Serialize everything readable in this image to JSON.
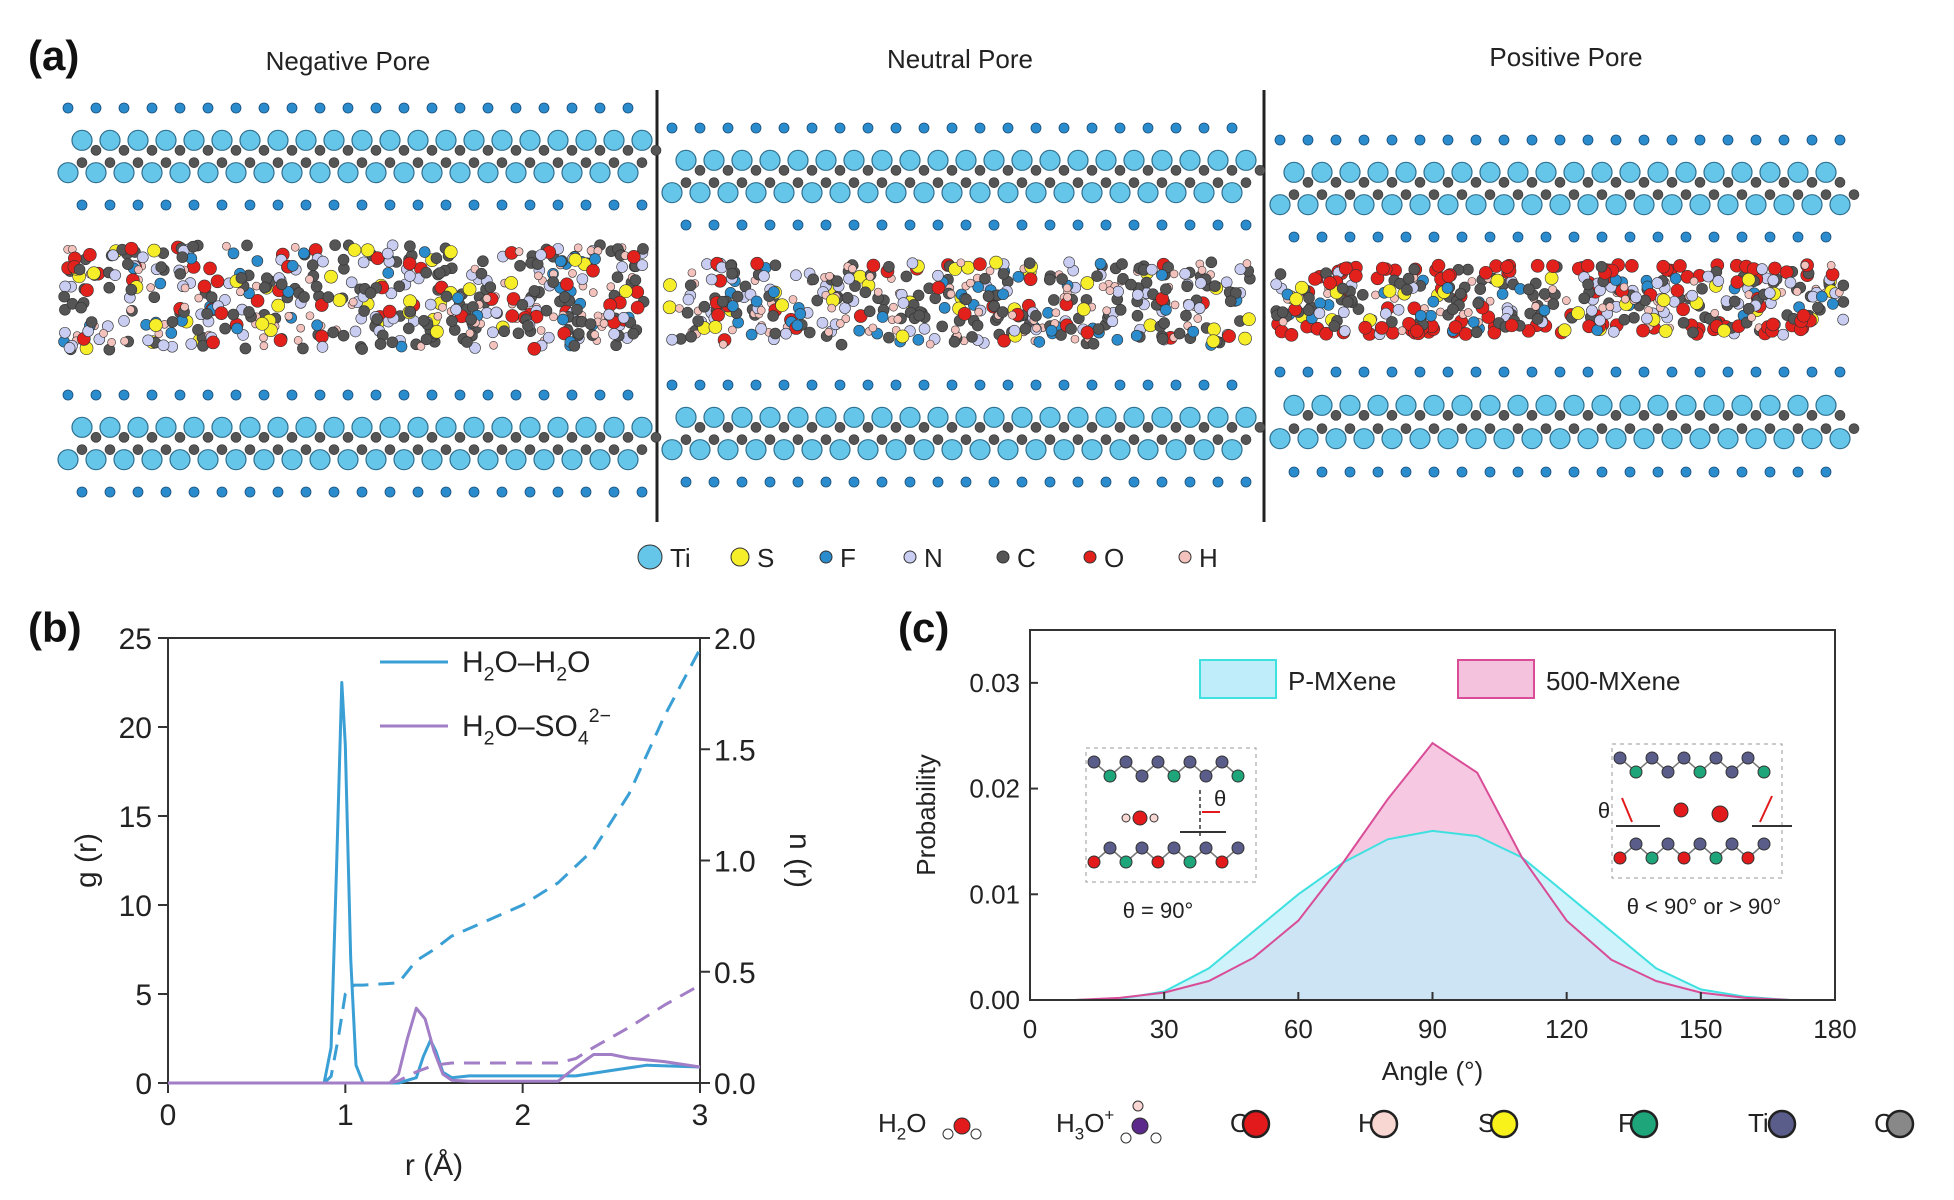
{
  "panel_a": {
    "label": "(a)",
    "pores": [
      {
        "title": "Negative Pore"
      },
      {
        "title": "Neutral Pore"
      },
      {
        "title": "Positive Pore"
      }
    ],
    "legend": [
      {
        "symbol": "Ti",
        "color": "#66c6ea"
      },
      {
        "symbol": "S",
        "color": "#f7ee2a"
      },
      {
        "symbol": "F",
        "color": "#2a8ccc"
      },
      {
        "symbol": "N",
        "color": "#c9cdf1"
      },
      {
        "symbol": "C",
        "color": "#555555"
      },
      {
        "symbol": "O",
        "color": "#e3211c"
      },
      {
        "symbol": "H",
        "color": "#f3c2bd"
      }
    ]
  },
  "chart_data": [
    {
      "type": "line",
      "panel": "(b)",
      "xlabel": "r (Å)",
      "ylabel": "g (r)",
      "y2label": "n (r)",
      "xlim": [
        0,
        3
      ],
      "ylim": [
        0,
        25
      ],
      "y2lim": [
        0,
        2.0
      ],
      "xticks": [
        "0",
        "1",
        "2",
        "3"
      ],
      "yticks": [
        "0",
        "5",
        "10",
        "15",
        "20",
        "25"
      ],
      "y2ticks": [
        "0.0",
        "0.5",
        "1.0",
        "1.5",
        "2.0"
      ],
      "legend": [
        {
          "label_main": "H",
          "sub1": "2",
          "mid": "O–H",
          "sub2": "2",
          "tail": "O",
          "sup": ""
        },
        {
          "label_main": "H",
          "sub1": "2",
          "mid": "O–SO",
          "sub2": "4",
          "tail": "",
          "sup": "2−"
        }
      ],
      "series": [
        {
          "color": "#3a9fd5",
          "axis": "left",
          "style": "solid",
          "x": [
            0,
            0.88,
            0.92,
            0.95,
            0.98,
            1.0,
            1.03,
            1.06,
            1.1,
            1.3,
            1.4,
            1.44,
            1.48,
            1.51,
            1.55,
            1.6,
            1.7,
            2.0,
            2.3,
            2.5,
            2.7,
            3.0
          ],
          "y": [
            0,
            0,
            2,
            12,
            22.5,
            19,
            7,
            1,
            0,
            0,
            0.3,
            1.5,
            2.4,
            1.8,
            0.6,
            0.3,
            0.4,
            0.4,
            0.4,
            0.7,
            1.0,
            0.9
          ]
        },
        {
          "color": "#3a9fd5",
          "axis": "right",
          "style": "dashed",
          "x": [
            0.88,
            0.92,
            0.96,
            1.0,
            1.05,
            1.1,
            1.3,
            1.4,
            1.5,
            1.6,
            1.8,
            2.0,
            2.2,
            2.4,
            2.6,
            2.8,
            3.0
          ],
          "y": [
            0,
            0.03,
            0.2,
            0.4,
            0.44,
            0.44,
            0.45,
            0.55,
            0.6,
            0.66,
            0.73,
            0.8,
            0.9,
            1.05,
            1.3,
            1.65,
            1.95
          ]
        },
        {
          "color": "#a27ec6",
          "axis": "left",
          "style": "solid",
          "x": [
            0,
            1.25,
            1.3,
            1.35,
            1.4,
            1.45,
            1.5,
            1.55,
            1.6,
            1.7,
            2.2,
            2.3,
            2.4,
            2.5,
            2.6,
            2.8,
            3.0
          ],
          "y": [
            0,
            0,
            0.5,
            2.5,
            4.2,
            3.6,
            1.8,
            0.5,
            0.15,
            0.1,
            0.1,
            0.9,
            1.6,
            1.6,
            1.4,
            1.2,
            0.9
          ]
        },
        {
          "color": "#a27ec6",
          "axis": "right",
          "style": "dashed",
          "x": [
            1.25,
            1.3,
            1.4,
            1.5,
            1.6,
            1.8,
            2.2,
            2.3,
            2.4,
            2.6,
            2.8,
            3.0
          ],
          "y": [
            0,
            0.01,
            0.05,
            0.08,
            0.09,
            0.09,
            0.09,
            0.11,
            0.16,
            0.25,
            0.35,
            0.44
          ]
        }
      ]
    },
    {
      "type": "area",
      "panel": "(c)",
      "xlabel": "Angle (°)",
      "ylabel": "Probability",
      "xlim": [
        0,
        180
      ],
      "ylim": [
        0,
        0.035
      ],
      "xticks": [
        "0",
        "30",
        "60",
        "90",
        "120",
        "150",
        "180"
      ],
      "yticks": [
        "0.00",
        "0.01",
        "0.02",
        "0.03"
      ],
      "series": [
        {
          "name": "P-MXene",
          "line": "#3fe0e0",
          "fill": "#bfeefa",
          "x": [
            0,
            10,
            20,
            30,
            40,
            50,
            60,
            70,
            80,
            90,
            100,
            110,
            120,
            130,
            140,
            150,
            160,
            170,
            180
          ],
          "y": [
            0,
            0,
            0.0001,
            0.0008,
            0.003,
            0.0065,
            0.01,
            0.013,
            0.0152,
            0.016,
            0.0155,
            0.0135,
            0.01,
            0.0065,
            0.003,
            0.001,
            0.0003,
            0,
            0
          ]
        },
        {
          "name": "500-MXene",
          "line": "#d94c97",
          "fill": "#f5c2de",
          "x": [
            0,
            10,
            20,
            30,
            40,
            50,
            60,
            70,
            80,
            90,
            100,
            110,
            120,
            130,
            140,
            150,
            160,
            170,
            180
          ],
          "y": [
            0,
            0,
            0.0002,
            0.0007,
            0.0018,
            0.004,
            0.0075,
            0.013,
            0.019,
            0.0243,
            0.0215,
            0.0135,
            0.0075,
            0.0038,
            0.0018,
            0.0007,
            0.0002,
            0,
            0
          ]
        }
      ],
      "insets": [
        {
          "caption": "θ = 90°",
          "angle_label": "θ"
        },
        {
          "caption": "θ < 90° or > 90°",
          "angle_label": "θ"
        }
      ],
      "species_legend": [
        {
          "name_main": "H",
          "sub": "2",
          "tail": "O",
          "sup": "",
          "kind": "water"
        },
        {
          "name_main": "H",
          "sub": "3",
          "tail": "O",
          "sup": "+",
          "kind": "hydronium"
        },
        {
          "name_main": "O",
          "sub": "",
          "tail": "",
          "sup": "",
          "kind": "atom",
          "color": "#e31a1c"
        },
        {
          "name_main": "H",
          "sub": "",
          "tail": "",
          "sup": "",
          "kind": "atom",
          "color": "#f8d7d3"
        },
        {
          "name_main": "S",
          "sub": "",
          "tail": "",
          "sup": "",
          "kind": "atom",
          "color": "#f8f21a"
        },
        {
          "name_main": "F",
          "sub": "",
          "tail": "",
          "sup": "",
          "kind": "atom",
          "color": "#1fa57a"
        },
        {
          "name_main": "Ti",
          "sub": "",
          "tail": "",
          "sup": "",
          "kind": "atom",
          "color": "#5a5c8a"
        },
        {
          "name_main": "C",
          "sub": "",
          "tail": "",
          "sup": "",
          "kind": "atom",
          "color": "#888888"
        }
      ]
    }
  ]
}
